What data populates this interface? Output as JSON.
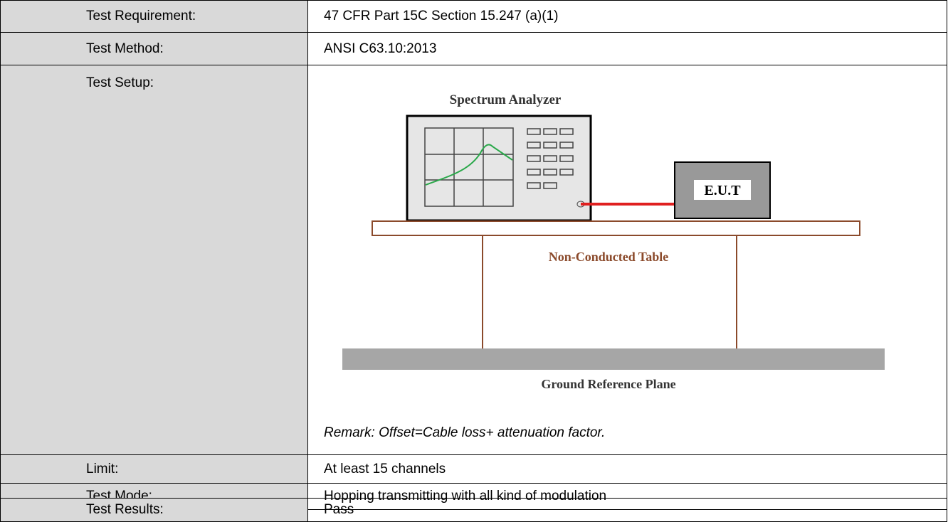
{
  "table": {
    "rows": [
      {
        "label": "Test Requirement:",
        "value": "47 CFR Part 15C Section 15.247 (a)(1)"
      },
      {
        "label": "Test Method:",
        "value": "ANSI C63.10:2013"
      },
      {
        "label": "Test Setup:",
        "diagram": {
          "analyzer": "Spectrum Analyzer",
          "eut": "E.U.T",
          "table": "Non-Conducted Table",
          "ground": "Ground Reference Plane"
        },
        "remark": "Remark: Offset=Cable loss+ attenuation factor."
      },
      {
        "label": "Limit:",
        "value": "At least 15 channels"
      },
      {
        "label": "Test Mode:",
        "value": "Hopping transmitting with all kind of modulation"
      },
      {
        "label": "Test Results:",
        "value": "Pass"
      }
    ]
  }
}
